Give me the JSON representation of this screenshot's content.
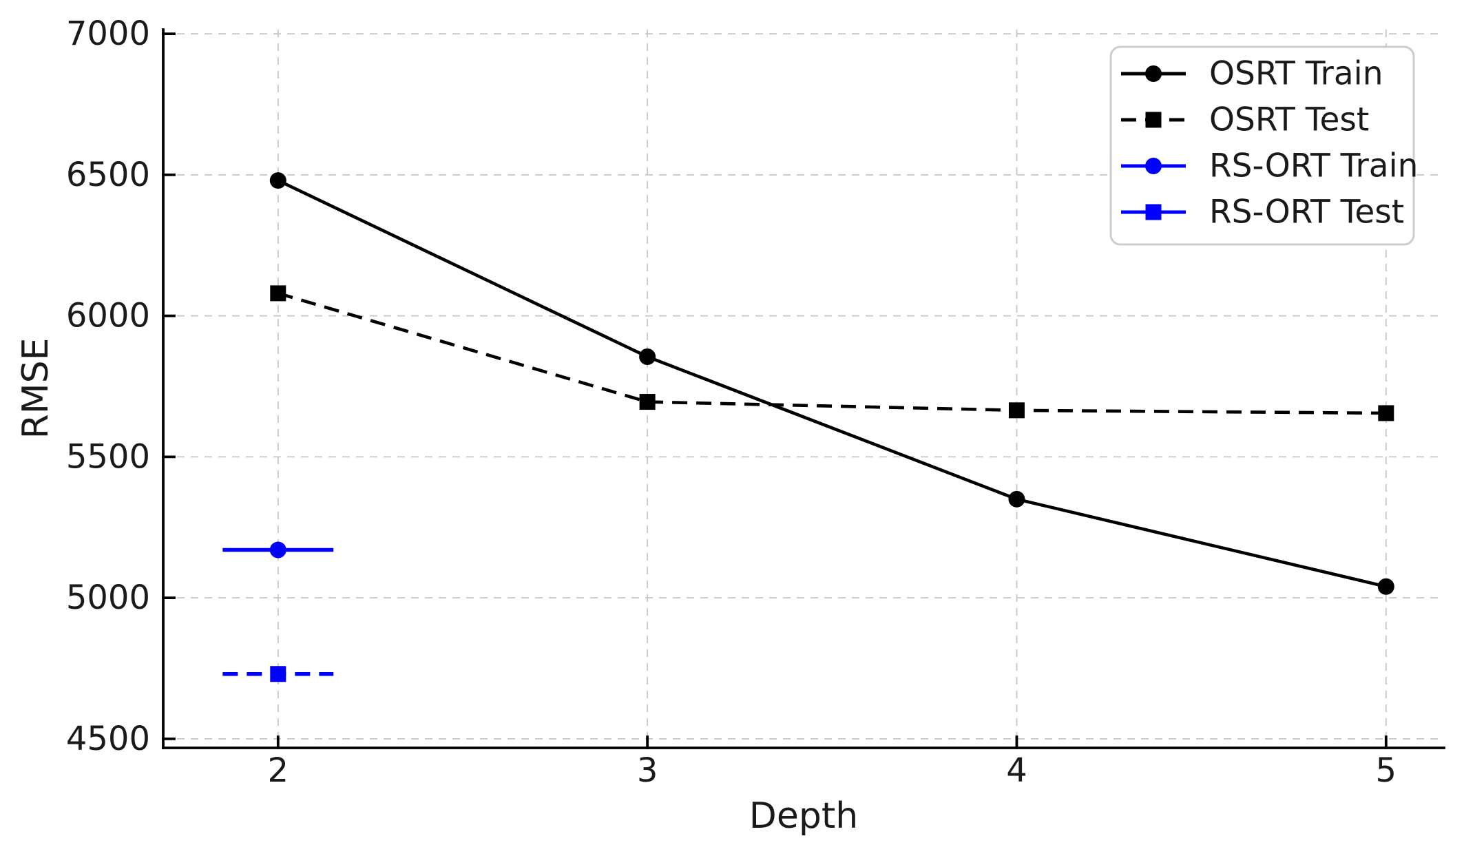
{
  "figure": {
    "background": "#ffffff",
    "text_color": "#1a1a1a",
    "spine_color": "#000000"
  },
  "chart_data": {
    "type": "line",
    "title": "",
    "xlabel": "Depth",
    "ylabel": "RMSE",
    "x_ticks": [
      2,
      3,
      4,
      5
    ],
    "x_tick_labels": [
      "2",
      "3",
      "4",
      "5"
    ],
    "y_ticks": [
      4500,
      5000,
      5500,
      6000,
      6500,
      7000
    ],
    "y_tick_labels": [
      "4500",
      "5000",
      "5500",
      "6000",
      "6500",
      "7000"
    ],
    "xlim": [
      1.689,
      5.157
    ],
    "ylim": [
      4468,
      7015
    ],
    "grid": true,
    "grid_color": "#c6c6c6",
    "legend": {
      "position": "upper right",
      "frame_color": "#cccccc",
      "fill": "#ffffff"
    },
    "series": [
      {
        "name": "OSRT Train",
        "color": "#000000",
        "linestyle": "solid",
        "marker": "circle",
        "x": [
          2,
          3,
          4,
          5
        ],
        "y": [
          6480,
          5855,
          5350,
          5040
        ],
        "legend_linestyle": "solid"
      },
      {
        "name": "OSRT Test",
        "color": "#000000",
        "linestyle": "dashed",
        "marker": "square",
        "x": [
          2,
          3,
          4,
          5
        ],
        "y": [
          6080,
          5695,
          5665,
          5655
        ],
        "legend_linestyle": "dashed"
      },
      {
        "name": "RS-ORT Train",
        "color": "#0000ff",
        "linestyle": "solid",
        "marker": "circle",
        "x": [
          2
        ],
        "y": [
          5170
        ],
        "xerr": 0.15,
        "legend_linestyle": "solid"
      },
      {
        "name": "RS-ORT Test",
        "color": "#0000ff",
        "linestyle": "dashed",
        "marker": "square",
        "x": [
          2
        ],
        "y": [
          4730
        ],
        "xerr": 0.15,
        "legend_linestyle": "solid"
      }
    ]
  }
}
